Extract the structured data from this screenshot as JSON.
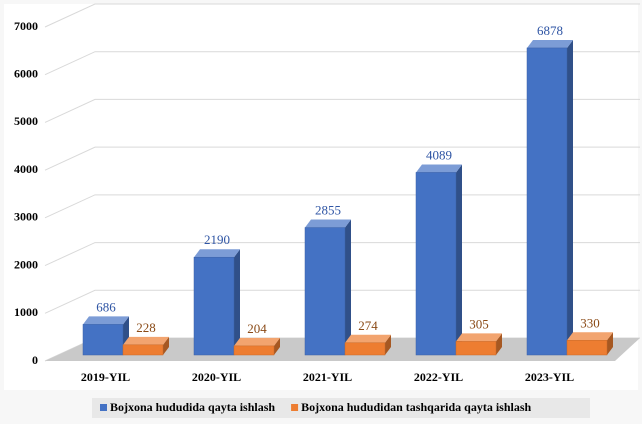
{
  "chart_data": {
    "type": "bar3d",
    "categories": [
      "2019-YIL",
      "2020-YIL",
      "2021-YIL",
      "2022-YIL",
      "2023-YIL"
    ],
    "series": [
      {
        "name": "Bojxona hududida qayta ishlash",
        "color": "#4472c4",
        "values": [
          686,
          2190,
          2855,
          4089,
          6878
        ]
      },
      {
        "name": "Bojxona hududidan tashqarida qayta ishlash",
        "color": "#ed7d31",
        "values": [
          228,
          204,
          274,
          305,
          330
        ]
      }
    ],
    "ylim": [
      0,
      7000
    ],
    "yticks": [
      0,
      1000,
      2000,
      3000,
      4000,
      5000,
      6000,
      7000
    ],
    "grid": true,
    "legend": "bottom"
  }
}
